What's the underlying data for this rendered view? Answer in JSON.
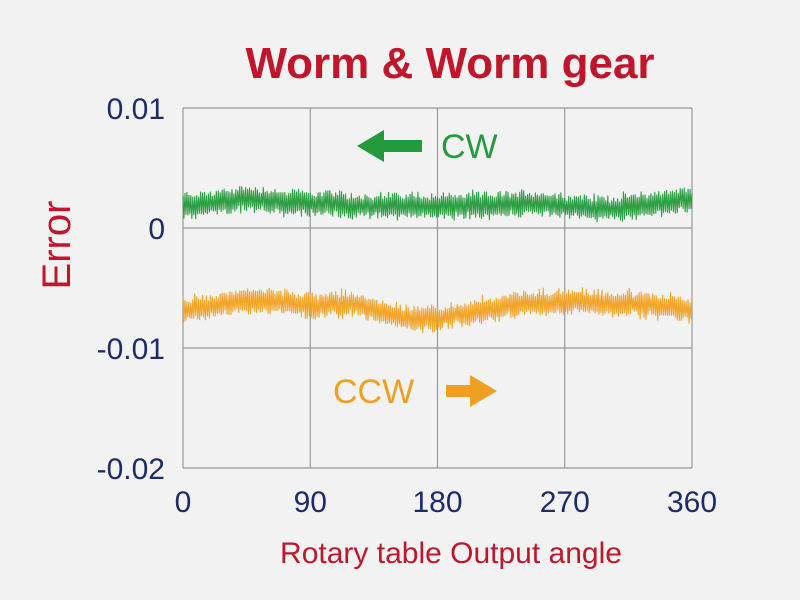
{
  "chart_data": {
    "type": "line",
    "title": "Worm & Worm gear",
    "xlabel": "Rotary table Output angle",
    "ylabel": "Error",
    "xlim": [
      0,
      360
    ],
    "ylim": [
      -0.02,
      0.01
    ],
    "x_ticks": [
      0,
      90,
      180,
      270,
      360
    ],
    "x_tick_labels": [
      "0",
      "90",
      "180",
      "270",
      "360"
    ],
    "y_ticks": [
      0.01,
      0,
      -0.01,
      -0.02
    ],
    "y_tick_labels": [
      "0.01",
      "0",
      "-0.01",
      "-0.02"
    ],
    "grid": true,
    "series": [
      {
        "name": "CW",
        "color": "#239a3b",
        "x": [
          0,
          15,
          30,
          45,
          60,
          75,
          90,
          105,
          120,
          135,
          150,
          165,
          180,
          195,
          210,
          225,
          240,
          255,
          270,
          285,
          300,
          315,
          330,
          345,
          360
        ],
        "center": [
          0.0019,
          0.002,
          0.0022,
          0.0025,
          0.0023,
          0.0021,
          0.0021,
          0.002,
          0.0018,
          0.0018,
          0.0019,
          0.0019,
          0.0018,
          0.0019,
          0.0019,
          0.0019,
          0.0021,
          0.002,
          0.0018,
          0.0017,
          0.0016,
          0.0018,
          0.002,
          0.0022,
          0.0024
        ],
        "amplitude": 0.0013
      },
      {
        "name": "CCW",
        "color": "#f0a020",
        "x": [
          0,
          15,
          30,
          45,
          60,
          75,
          90,
          105,
          120,
          135,
          150,
          165,
          180,
          195,
          210,
          225,
          240,
          255,
          270,
          285,
          300,
          315,
          330,
          345,
          360
        ],
        "center": [
          -0.0068,
          -0.0067,
          -0.0063,
          -0.006,
          -0.006,
          -0.0063,
          -0.0065,
          -0.0064,
          -0.0063,
          -0.0068,
          -0.0074,
          -0.0076,
          -0.0075,
          -0.0072,
          -0.0069,
          -0.0066,
          -0.0063,
          -0.0062,
          -0.0061,
          -0.0061,
          -0.0063,
          -0.0063,
          -0.0064,
          -0.0066,
          -0.0068
        ],
        "amplitude": 0.0013
      }
    ],
    "annotations": [
      {
        "text": "CW",
        "arrow": "left",
        "color": "#239a3b"
      },
      {
        "text": "CCW",
        "arrow": "right",
        "color": "#f0a020"
      }
    ],
    "colors": {
      "title": "#c0152a",
      "tick_text": "#1d2a6b",
      "axis_label": "#c0152a",
      "grid": "#999999",
      "background": "#f2f2f2"
    }
  }
}
